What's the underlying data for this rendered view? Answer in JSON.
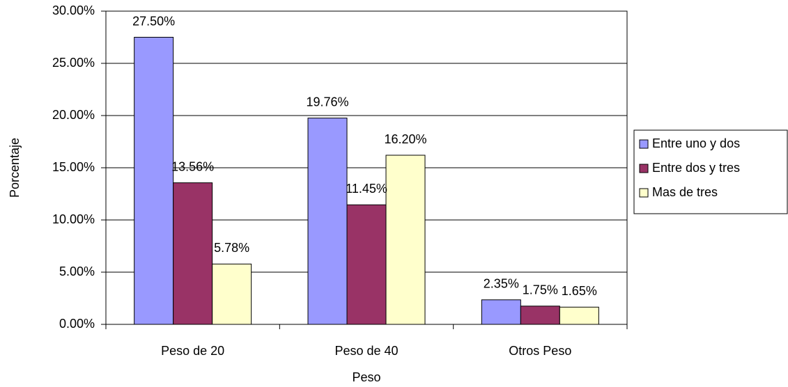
{
  "chart_data": {
    "type": "bar",
    "categories": [
      "Peso de 20",
      "Peso de 40",
      "Otros Peso"
    ],
    "series": [
      {
        "name": "Entre uno y dos",
        "color": "#9999ff",
        "values": [
          27.5,
          19.76,
          2.35
        ],
        "value_labels": [
          "27.50%",
          "19.76%",
          "2.35%"
        ]
      },
      {
        "name": "Entre dos y tres",
        "color": "#993366",
        "values": [
          13.56,
          11.45,
          1.75
        ],
        "value_labels": [
          "13.56%",
          "11.45%",
          "1.75%"
        ]
      },
      {
        "name": "Mas de tres",
        "color": "#ffffcc",
        "values": [
          5.78,
          16.2,
          1.65
        ],
        "value_labels": [
          "5.78%",
          "16.20%",
          "1.65%"
        ]
      }
    ],
    "xlabel": "Peso",
    "ylabel": "Porcentaje",
    "ylim": [
      0,
      30
    ],
    "yticks": [
      {
        "value": 0,
        "label": "0.00%"
      },
      {
        "value": 5,
        "label": "5.00%"
      },
      {
        "value": 10,
        "label": "10.00%"
      },
      {
        "value": 15,
        "label": "15.00%"
      },
      {
        "value": 20,
        "label": "20.00%"
      },
      {
        "value": 25,
        "label": "25.00%"
      },
      {
        "value": 30,
        "label": "30.00%"
      }
    ],
    "grid": true,
    "legend": "right"
  }
}
